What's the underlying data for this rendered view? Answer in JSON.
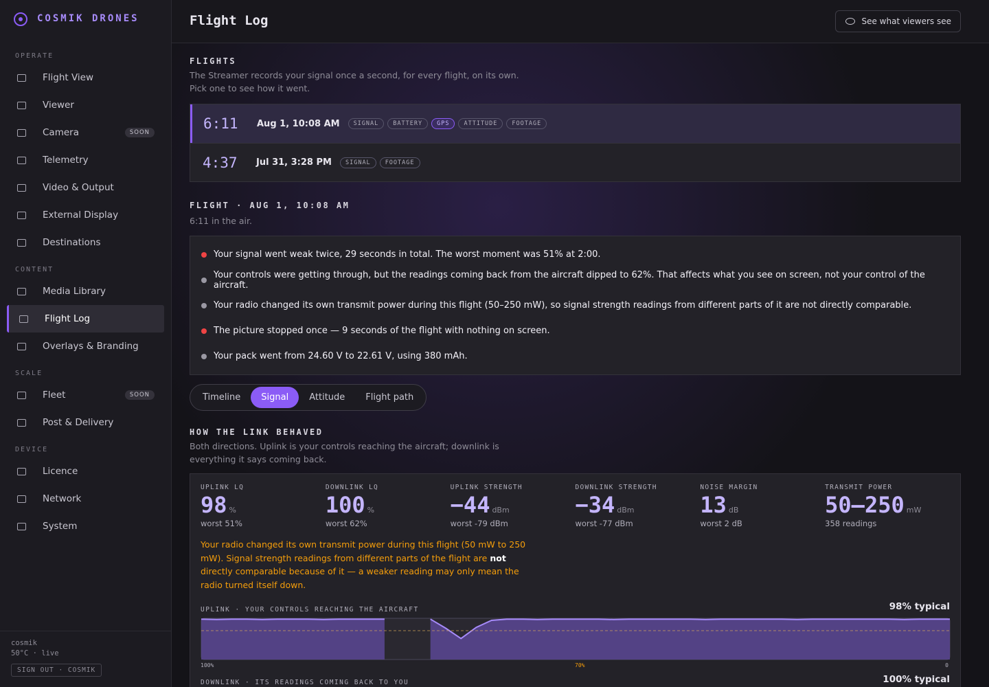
{
  "sidebar": {
    "brand": "COSMIK DRONES",
    "sections": [
      {
        "title": "OPERATE",
        "items": [
          {
            "label": "Flight View"
          },
          {
            "label": "Viewer"
          },
          {
            "label": "Camera",
            "badge": "SOON"
          },
          {
            "label": "Telemetry"
          },
          {
            "label": "Video & Output"
          },
          {
            "label": "External Display"
          },
          {
            "label": "Destinations"
          }
        ]
      },
      {
        "title": "CONTENT",
        "items": [
          {
            "label": "Media Library"
          },
          {
            "label": "Flight Log",
            "active": true
          },
          {
            "label": "Overlays & Branding"
          }
        ]
      },
      {
        "title": "SCALE",
        "items": [
          {
            "label": "Fleet",
            "badge": "SOON"
          },
          {
            "label": "Post & Delivery"
          }
        ]
      },
      {
        "title": "DEVICE",
        "items": [
          {
            "label": "Licence"
          },
          {
            "label": "Network"
          },
          {
            "label": "System"
          }
        ]
      }
    ],
    "footer": {
      "user": "cosmik",
      "status": "50°C · live",
      "signout": "SIGN OUT · COSMIK"
    }
  },
  "header": {
    "title": "Flight Log",
    "button": "See what viewers see"
  },
  "flights": {
    "title": "FLIGHTS",
    "description": [
      "The Streamer records your signal once a second, for every flight, on its own.",
      "Pick one to see how it went."
    ],
    "rows": [
      {
        "duration": "6:11",
        "date": "Aug 1, 10:08 AM",
        "selected": true,
        "tags": [
          {
            "label": "SIGNAL"
          },
          {
            "label": "BATTERY"
          },
          {
            "label": "GPS",
            "active": true
          },
          {
            "label": "ATTITUDE"
          },
          {
            "label": "FOOTAGE"
          }
        ]
      },
      {
        "duration": "4:37",
        "date": "Jul 31, 3:28 PM",
        "tags": [
          {
            "label": "SIGNAL"
          },
          {
            "label": "FOOTAGE"
          }
        ]
      }
    ]
  },
  "detail": {
    "title": "FLIGHT · AUG 1, 10:08 AM",
    "subtitle": "6:11 in the air.",
    "notes": [
      {
        "text": "Your signal went weak twice, 29 seconds in total. The worst moment was 51% at 2:00.",
        "color": "#ef4444"
      },
      {
        "text": "Your controls were getting through, but the readings coming back from the aircraft dipped to 62%. That affects what you see on screen, not your control of the aircraft.",
        "color": "#9a98a3"
      },
      {
        "text": "Your radio changed its own transmit power during this flight (50–250 mW), so signal strength readings from different parts of it are not directly comparable.",
        "color": "#9a98a3"
      },
      {
        "text": "The picture stopped once — 9 seconds of the flight with nothing on screen.",
        "color": "#ef4444"
      },
      {
        "text": "Your pack went from 24.60 V to 22.61 V, using 380 mAh.",
        "color": "#9a98a3"
      }
    ]
  },
  "tabs": {
    "items": [
      "Timeline",
      "Signal",
      "Attitude",
      "Flight path"
    ],
    "active": 1
  },
  "link": {
    "title": "HOW THE LINK BEHAVED",
    "description": [
      "Both directions. Uplink is your controls reaching the aircraft; downlink is",
      "everything it says coming back."
    ],
    "stats": [
      {
        "label": "UPLINK LQ",
        "value": "98",
        "unit": "%",
        "sub": "worst 51%"
      },
      {
        "label": "DOWNLINK LQ",
        "value": "100",
        "unit": "%",
        "sub": "worst 62%"
      },
      {
        "label": "UPLINK STRENGTH",
        "value": "−44",
        "unit": "dBm",
        "sub": "worst -79 dBm"
      },
      {
        "label": "DOWNLINK STRENGTH",
        "value": "−34",
        "unit": "dBm",
        "sub": "worst -77 dBm"
      },
      {
        "label": "NOISE MARGIN",
        "value": "13",
        "unit": "dB",
        "sub": "worst 2 dB"
      },
      {
        "label": "TRANSMIT POWER",
        "value": "50–250",
        "unit": "mW",
        "sub": "358 readings"
      }
    ],
    "warning": {
      "before": "Your radio changed its own transmit power during this flight (50 mW to 250 mW). Signal strength readings from different parts of the flight are ",
      "bold": "not",
      "after": " directly comparable because of it — a weaker reading may only mean the radio turned itself down."
    }
  },
  "chart_data": {
    "type": "line",
    "title": "UPLINK · YOUR CONTROLS REACHING THE AIRCRAFT",
    "typical": "98% typical",
    "color": "#a78bfa",
    "ylim": [
      0,
      100
    ],
    "threshold": 70,
    "values": [
      98,
      97,
      98,
      98,
      97,
      98,
      98,
      98,
      97,
      98,
      98,
      98,
      98,
      null,
      null,
      98,
      76,
      51,
      78,
      95,
      98,
      98,
      97,
      98,
      98,
      98,
      98,
      97,
      98,
      98,
      98,
      98,
      98,
      97,
      98,
      98,
      98,
      98,
      98,
      97,
      98,
      98,
      98,
      98,
      98,
      98,
      97,
      98,
      98,
      98
    ],
    "scale_labels": [
      "100%",
      "70%",
      "0"
    ]
  },
  "next_chart": {
    "title": "DOWNLINK · ITS READINGS COMING BACK TO YOU",
    "typical": "100% typical"
  }
}
